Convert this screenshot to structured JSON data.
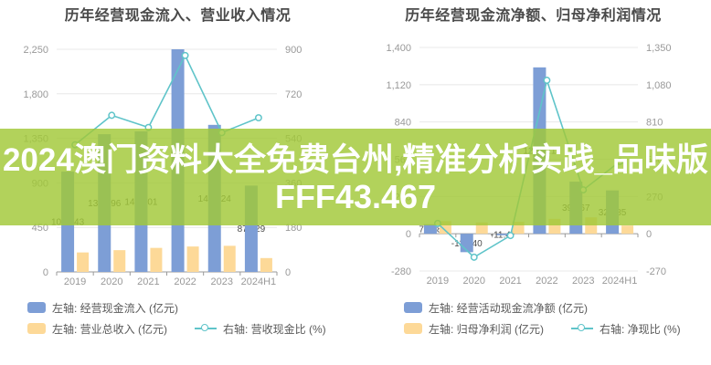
{
  "watermark": {
    "line1": "2024澳门资料大全免费台州,精准分析实践_品味版",
    "line2": "FFF43.467",
    "band_color": "rgba(161,200,55,0.82)",
    "text_color": "#ffffff"
  },
  "colors": {
    "bar_primary": "#7d9ed6",
    "bar_secondary": "#fdd998",
    "line": "#5fc4c9",
    "grid": "#e8e8e8",
    "axis": "#9a9a9a",
    "tick_text": "#999999",
    "title_text": "#4a4a4a",
    "legend_text": "#595959",
    "label_text": "#4d4d4d"
  },
  "chart_data": [
    {
      "type": "bar",
      "title": "历年经营现金流入、营业收入情况",
      "categories": [
        "2019",
        "2020",
        "2021",
        "2022",
        "2023",
        "2024H1"
      ],
      "series": [
        {
          "name": "左轴: 经营现金流入 (亿元)",
          "type": "bar",
          "axis": "left",
          "color": "#7d9ed6",
          "values": [
            1013.43,
            1391.96,
            1420.01,
            2250,
            1486.24,
            872.29
          ],
          "labels": [
            "1013.43",
            "1391.96",
            "1420.01",
            "",
            "1486.24",
            "872.29"
          ]
        },
        {
          "name": "左轴: 营业总收入 (亿元)",
          "type": "bar",
          "axis": "left",
          "color": "#fdd998",
          "values": [
            197,
            220,
            243,
            257,
            264,
            140
          ],
          "labels": []
        },
        {
          "name": "右轴: 营收现金比 (%)",
          "type": "line",
          "axis": "right",
          "color": "#5fc4c9",
          "values": [
            514,
            633,
            584,
            875,
            563,
            623
          ],
          "labels": []
        }
      ],
      "left_axis": {
        "min": 0,
        "max": 2250,
        "step": 450,
        "ticks": [
          "2,250",
          "1,800",
          "1,350",
          "900",
          "450",
          "0"
        ]
      },
      "right_axis": {
        "min": 0,
        "max": 900,
        "step": 180,
        "ticks": [
          "900",
          "720",
          "540",
          "360",
          "180",
          "0"
        ]
      },
      "grid": true,
      "legend_position": "bottom"
    },
    {
      "type": "bar",
      "title": "历年经营现金流净额、归母净利润情况",
      "categories": [
        "2019",
        "2020",
        "2021",
        "2022",
        "2023",
        "2024H1"
      ],
      "series": [
        {
          "name": "左轴: 经营活动现金流净额 (亿元)",
          "type": "bar",
          "axis": "left",
          "color": "#7d9ed6",
          "values": [
            71.38,
            -138.4,
            -11.47,
            1250.21,
            391.67,
            325.85
          ],
          "labels": [
            "71.38",
            "-138.40",
            "-11.47",
            "1250.21",
            "391.67",
            "325.85"
          ]
        },
        {
          "name": "左轴: 归母净利润 (亿元)",
          "type": "bar",
          "axis": "left",
          "color": "#fdd998",
          "values": [
            95,
            85,
            90,
            112,
            123,
            62
          ],
          "labels": []
        },
        {
          "name": "右轴: 净现比 (%)",
          "type": "line",
          "axis": "right",
          "color": "#5fc4c9",
          "values": [
            75,
            -170,
            -13,
            1112,
            318,
            523
          ],
          "labels": []
        }
      ],
      "left_axis": {
        "min": -280,
        "max": 1400,
        "step": 280,
        "ticks": [
          "1,400",
          "1,120",
          "840",
          "560",
          "280",
          "0",
          "-280"
        ]
      },
      "right_axis": {
        "min": -270,
        "max": 1350,
        "step": 270,
        "ticks": [
          "1,350",
          "1,080",
          "810",
          "540",
          "270",
          "0",
          "-270"
        ]
      },
      "grid": true,
      "legend_position": "bottom"
    }
  ]
}
